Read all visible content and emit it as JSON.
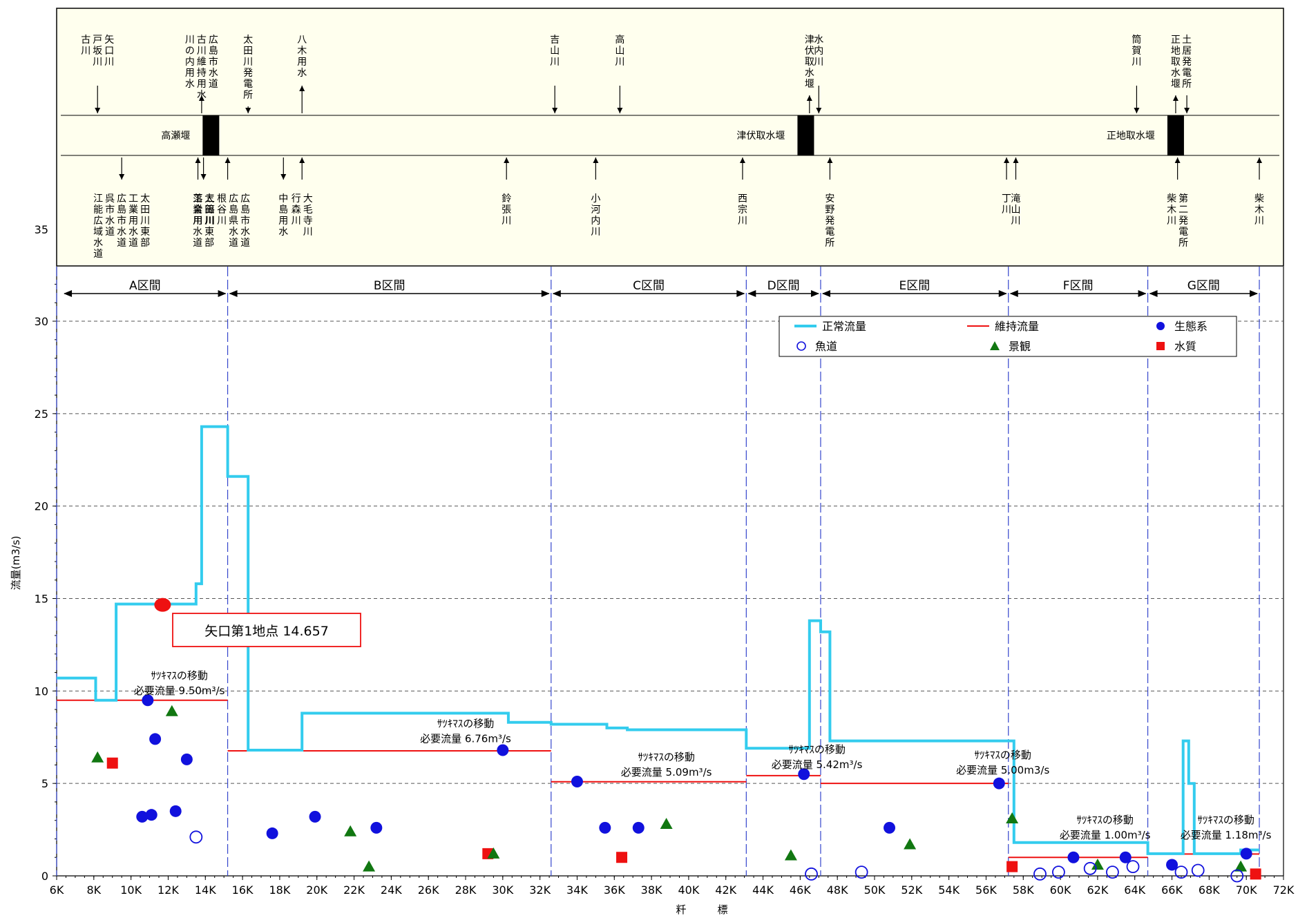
{
  "chart_data": {
    "type": "line",
    "xlabel": "粁　　　標",
    "ylabel": "流量(m3/s)",
    "xlim": [
      6,
      72
    ],
    "ylim": [
      0,
      30
    ],
    "x_ticks": [
      6,
      8,
      10,
      12,
      14,
      16,
      18,
      20,
      22,
      24,
      26,
      28,
      30,
      32,
      34,
      36,
      38,
      40,
      42,
      44,
      46,
      48,
      50,
      52,
      54,
      56,
      58,
      60,
      62,
      64,
      66,
      68,
      70,
      72
    ],
    "x_tick_labels": [
      "6K",
      "8K",
      "10K",
      "12K",
      "14K",
      "16K",
      "18K",
      "20K",
      "22K",
      "24K",
      "26K",
      "28K",
      "30K",
      "32K",
      "34K",
      "36K",
      "38K",
      "40K",
      "42K",
      "44K",
      "46K",
      "48K",
      "50K",
      "52K",
      "54K",
      "56K",
      "58K",
      "60K",
      "62K",
      "64K",
      "66K",
      "68K",
      "70K",
      "72K"
    ],
    "y_ticks": [
      0,
      5,
      10,
      15,
      20,
      25,
      30
    ],
    "y_tick_labels": [
      "0",
      "5",
      "10",
      "15",
      "20",
      "25",
      "30"
    ],
    "y_extra_label": "35",
    "series": [
      {
        "name": "正常流量",
        "color": "#33ccee",
        "type": "step",
        "points": [
          [
            6,
            10.7
          ],
          [
            8.1,
            10.7
          ],
          [
            8.1,
            9.5
          ],
          [
            9.2,
            9.5
          ],
          [
            9.2,
            14.7
          ],
          [
            13.5,
            14.7
          ],
          [
            13.5,
            15.8
          ],
          [
            13.8,
            15.8
          ],
          [
            13.8,
            24.3
          ],
          [
            15.2,
            24.3
          ],
          [
            15.2,
            21.6
          ],
          [
            16.3,
            21.6
          ],
          [
            16.3,
            6.8
          ],
          [
            19.2,
            6.8
          ],
          [
            19.2,
            8.8
          ],
          [
            30.3,
            8.8
          ],
          [
            30.3,
            8.3
          ],
          [
            32.6,
            8.3
          ],
          [
            32.6,
            8.2
          ],
          [
            35.6,
            8.2
          ],
          [
            35.6,
            8.0
          ],
          [
            36.7,
            8.0
          ],
          [
            36.7,
            7.9
          ],
          [
            43.1,
            7.9
          ],
          [
            43.1,
            6.9
          ],
          [
            46.5,
            6.9
          ],
          [
            46.5,
            13.8
          ],
          [
            47.1,
            13.8
          ],
          [
            47.1,
            13.2
          ],
          [
            47.6,
            13.2
          ],
          [
            47.6,
            7.3
          ],
          [
            57.5,
            7.3
          ],
          [
            57.5,
            1.8
          ],
          [
            64.7,
            1.8
          ],
          [
            64.7,
            1.2
          ],
          [
            66.6,
            1.2
          ],
          [
            66.6,
            7.3
          ],
          [
            66.9,
            7.3
          ],
          [
            66.9,
            5.0
          ],
          [
            67.2,
            5.0
          ],
          [
            67.2,
            1.2
          ],
          [
            69.7,
            1.2
          ],
          [
            69.7,
            1.4
          ],
          [
            70.7,
            1.4
          ]
        ]
      },
      {
        "name": "維持流量",
        "color": "#ee1111",
        "type": "segments",
        "segments": [
          [
            6,
            15.2,
            9.5
          ],
          [
            15.2,
            32.6,
            6.76
          ],
          [
            32.6,
            43.1,
            5.09
          ],
          [
            43.1,
            47.1,
            5.42
          ],
          [
            47.1,
            57.2,
            5.0
          ],
          [
            57.2,
            64.7,
            1.0
          ],
          [
            64.7,
            70.7,
            1.18
          ]
        ]
      }
    ],
    "points": {
      "生態系": [
        [
          10.9,
          9.5
        ],
        [
          11.3,
          7.4
        ],
        [
          13.0,
          6.3
        ],
        [
          10.6,
          3.2
        ],
        [
          11.1,
          3.3
        ],
        [
          12.4,
          3.5
        ],
        [
          17.6,
          2.3
        ],
        [
          19.9,
          3.2
        ],
        [
          23.2,
          2.6
        ],
        [
          30.0,
          6.8
        ],
        [
          34.0,
          5.1
        ],
        [
          35.5,
          2.6
        ],
        [
          37.3,
          2.6
        ],
        [
          46.2,
          5.5
        ],
        [
          50.8,
          2.6
        ],
        [
          56.7,
          5.0
        ],
        [
          60.7,
          1.0
        ],
        [
          63.5,
          1.0
        ],
        [
          66.0,
          0.6
        ],
        [
          70.0,
          1.2
        ]
      ],
      "魚道": [
        [
          13.5,
          2.1
        ],
        [
          46.6,
          0.1
        ],
        [
          49.3,
          0.2
        ],
        [
          58.9,
          0.1
        ],
        [
          59.9,
          0.2
        ],
        [
          61.6,
          0.4
        ],
        [
          62.8,
          0.2
        ],
        [
          63.9,
          0.5
        ],
        [
          66.5,
          0.2
        ],
        [
          67.4,
          0.3
        ],
        [
          69.5,
          0.0
        ]
      ],
      "景観": [
        [
          8.2,
          6.4
        ],
        [
          12.2,
          8.9
        ],
        [
          21.8,
          2.4
        ],
        [
          22.8,
          0.5
        ],
        [
          29.5,
          1.2
        ],
        [
          38.8,
          2.8
        ],
        [
          45.5,
          1.1
        ],
        [
          51.9,
          1.7
        ],
        [
          57.4,
          3.1
        ],
        [
          62.0,
          0.6
        ],
        [
          69.7,
          0.5
        ]
      ],
      "水質": [
        [
          9.0,
          6.1
        ],
        [
          29.2,
          1.2
        ],
        [
          36.4,
          1.0
        ],
        [
          57.4,
          0.5
        ],
        [
          70.5,
          0.1
        ]
      ]
    },
    "highlight_point": {
      "x": 11.7,
      "y": 14.657,
      "label": "矢口第1地点 14.657"
    },
    "annotations": [
      {
        "line1": "ｻﾂｷﾏｽの移動",
        "line2": "必要流量 9.50m³/s",
        "x": 12.6,
        "y": 9.6
      },
      {
        "line1": "ｻﾂｷﾏｽの移動",
        "line2": "必要流量 6.76m³/s",
        "x": 28.0,
        "y": 7.0
      },
      {
        "line1": "ｻﾂｷﾏｽの移動",
        "line2": "必要流量 5.09m³/s",
        "x": 38.8,
        "y": 5.2
      },
      {
        "line1": "ｻﾂｷﾏｽの移動",
        "line2": "必要流量 5.42m³/s",
        "x": 46.9,
        "y": 5.6
      },
      {
        "line1": "ｻﾂｷﾏｽの移動",
        "line2": "必要流量 5.00m3/s",
        "x": 56.9,
        "y": 5.3
      },
      {
        "line1": "ｻﾂｷﾏｽの移動",
        "line2": "必要流量 1.00m³/s",
        "x": 62.4,
        "y": 1.8
      },
      {
        "line1": "ｻﾂｷﾏｽの移動",
        "line2": "必要流量 1.18m³/s",
        "x": 68.9,
        "y": 1.8
      }
    ],
    "sections": [
      {
        "label": "A区間",
        "from": 6.3,
        "to": 15.2
      },
      {
        "label": "B区間",
        "from": 15.2,
        "to": 32.6
      },
      {
        "label": "C区間",
        "from": 32.6,
        "to": 43.1
      },
      {
        "label": "D区間",
        "from": 43.1,
        "to": 47.1
      },
      {
        "label": "E区間",
        "from": 47.1,
        "to": 57.2
      },
      {
        "label": "F区間",
        "from": 57.2,
        "to": 64.7
      },
      {
        "label": "G区間",
        "from": 64.7,
        "to": 70.7
      }
    ],
    "section_bounds": [
      15.2,
      32.6,
      43.1,
      47.1,
      57.2,
      64.7,
      70.7
    ],
    "legend": [
      {
        "label": "正常流量",
        "marker": "line",
        "color": "#33ccee"
      },
      {
        "label": "維持流量",
        "marker": "line",
        "color": "#ee1111"
      },
      {
        "label": "生態系",
        "marker": "circle",
        "color": "#1111dd"
      },
      {
        "label": "魚道",
        "marker": "open-circle",
        "color": "#1111dd"
      },
      {
        "label": "景観",
        "marker": "triangle",
        "color": "#117711"
      },
      {
        "label": "水質",
        "marker": "square",
        "color": "#ee1111"
      }
    ],
    "legend_position": "top-right",
    "grid": "horizontal dashed",
    "schematic": {
      "weirs": [
        {
          "label": "高瀬堰",
          "x": 14.3
        },
        {
          "label": "津伏取水堰",
          "x": 46.3
        },
        {
          "label": "正地取水堰",
          "x": 66.2
        }
      ],
      "top_items": [
        {
          "label": "古川",
          "x": 8.2,
          "dir": "down"
        },
        {
          "label": "戸坂川",
          "x": 8.2,
          "dir": "down"
        },
        {
          "label": "矢口川",
          "x": 8.2,
          "dir": "down"
        },
        {
          "label": "川の内用水",
          "x": 13.8,
          "dir": "up"
        },
        {
          "label": "古川維持用水",
          "x": 13.8,
          "dir": "up"
        },
        {
          "label": "広島市水道",
          "x": 13.8,
          "dir": "up"
        },
        {
          "label": "太田川発電所",
          "x": 16.3,
          "dir": "down"
        },
        {
          "label": "八木用水",
          "x": 19.2,
          "dir": "up"
        },
        {
          "label": "吉山川",
          "x": 32.8,
          "dir": "down"
        },
        {
          "label": "高山川",
          "x": 36.3,
          "dir": "down"
        },
        {
          "label": "津伏取水堰",
          "x": 46.5,
          "dir": "up"
        },
        {
          "label": "水内川",
          "x": 47.0,
          "dir": "down"
        },
        {
          "label": "筒賀川",
          "x": 64.1,
          "dir": "down"
        },
        {
          "label": "正地取水堰",
          "x": 66.2,
          "dir": "up"
        },
        {
          "label": "土居発電所",
          "x": 66.8,
          "dir": "down"
        }
      ],
      "bottom_items": [
        {
          "label": "江能広域水道",
          "x": 9.5,
          "dir": "down"
        },
        {
          "label": "呉市水道",
          "x": 9.5,
          "dir": "down"
        },
        {
          "label": "広島市水道",
          "x": 9.5,
          "dir": "down"
        },
        {
          "label": "工業用水道",
          "x": 9.5,
          "dir": "down"
        },
        {
          "label": "太田川東部",
          "x": 9.5,
          "dir": "down"
        },
        {
          "label": "落合川",
          "x": 13.6,
          "dir": "up"
        },
        {
          "label": "工業用水道",
          "x": 13.9,
          "dir": "down"
        },
        {
          "label": "太田川東部",
          "x": 13.9,
          "dir": "down"
        },
        {
          "label": "三篠川",
          "x": 15.2,
          "dir": "up"
        },
        {
          "label": "根谷川",
          "x": 15.2,
          "dir": "up"
        },
        {
          "label": "広島県水道",
          "x": 15.2,
          "dir": "up"
        },
        {
          "label": "広島市水道",
          "x": 15.2,
          "dir": "up"
        },
        {
          "label": "中島用水",
          "x": 18.2,
          "dir": "down"
        },
        {
          "label": "行森川",
          "x": 19.2,
          "dir": "up"
        },
        {
          "label": "大毛寺川",
          "x": 19.2,
          "dir": "up"
        },
        {
          "label": "鈴張川",
          "x": 30.2,
          "dir": "up"
        },
        {
          "label": "小河内川",
          "x": 35.0,
          "dir": "up"
        },
        {
          "label": "西宗川",
          "x": 42.9,
          "dir": "up"
        },
        {
          "label": "安野発電所",
          "x": 47.6,
          "dir": "up"
        },
        {
          "label": "丁川",
          "x": 57.1,
          "dir": "up"
        },
        {
          "label": "滝山川",
          "x": 57.6,
          "dir": "up"
        },
        {
          "label": "柴木川",
          "x": 66.3,
          "dir": "up"
        },
        {
          "label": "第二発電所",
          "x": 66.3,
          "dir": "up"
        },
        {
          "label": "柴木川",
          "x": 70.7,
          "dir": "up"
        }
      ]
    }
  }
}
